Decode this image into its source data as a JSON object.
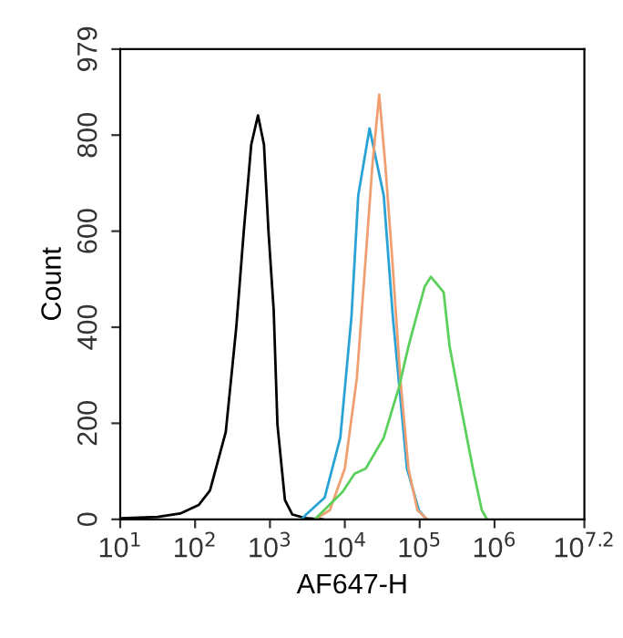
{
  "chart_data": {
    "type": "line",
    "xlabel": "AF647-H",
    "ylabel": "Count",
    "log": "x",
    "grid": false,
    "marker": "none",
    "line_style": "solid",
    "xlim": [
      10,
      15848931.9
    ],
    "ylim": [
      0,
      979
    ],
    "xticks": [
      {
        "value": 10,
        "label": "10$^{1}$"
      },
      {
        "value": 100,
        "label": "10$^{2}$"
      },
      {
        "value": 1000,
        "label": "10$^{3}$"
      },
      {
        "value": 10000,
        "label": "10$^{4}$"
      },
      {
        "value": 100000,
        "label": "10$^{5}$"
      },
      {
        "value": 1000000,
        "label": "10$^{6}$"
      },
      {
        "value": 15848931.9,
        "label": "10$^{7.2}$"
      }
    ],
    "yticks": [
      0,
      200,
      400,
      600,
      800,
      979
    ],
    "series": [
      {
        "color": "#000000",
        "x": [
          10,
          31.6,
          63.1,
          112,
          158,
          257,
          355,
          447,
          562,
          692,
          832,
          955,
          1122,
          1259,
          1585,
          1995,
          3090,
          5012
        ],
        "values": [
          2,
          5,
          12,
          30,
          60,
          182,
          400,
          600,
          780,
          841,
          780,
          600,
          435,
          197,
          40,
          10,
          2,
          0
        ]
      },
      {
        "color": "#29a3d6",
        "x": [
          2630,
          3090,
          5370,
          8710,
          12300,
          15100,
          21400,
          33100,
          43700,
          53700,
          67600,
          97700,
          123000
        ],
        "values": [
          0,
          11,
          45,
          170,
          424,
          674,
          814,
          674,
          424,
          273,
          106,
          19,
          0
        ]
      },
      {
        "color": "#f0a070",
        "x": [
          3980,
          6310,
          10000,
          14500,
          19100,
          23400,
          28800,
          34700,
          42700,
          55000,
          70800,
          93300,
          126000
        ],
        "values": [
          0,
          19,
          106,
          295,
          549,
          739,
          884,
          739,
          549,
          295,
          106,
          19,
          0
        ]
      },
      {
        "color": "#5cd05c",
        "x": [
          3980,
          9330,
          13500,
          19100,
          33100,
          52500,
          70800,
          91200,
          117000,
          141000,
          209000,
          251000,
          355000,
          513000,
          676000,
          794000
        ],
        "values": [
          0,
          57,
          95,
          106,
          170,
          273,
          360,
          424,
          485,
          505,
          473,
          360,
          235,
          106,
          19,
          0
        ]
      }
    ]
  }
}
